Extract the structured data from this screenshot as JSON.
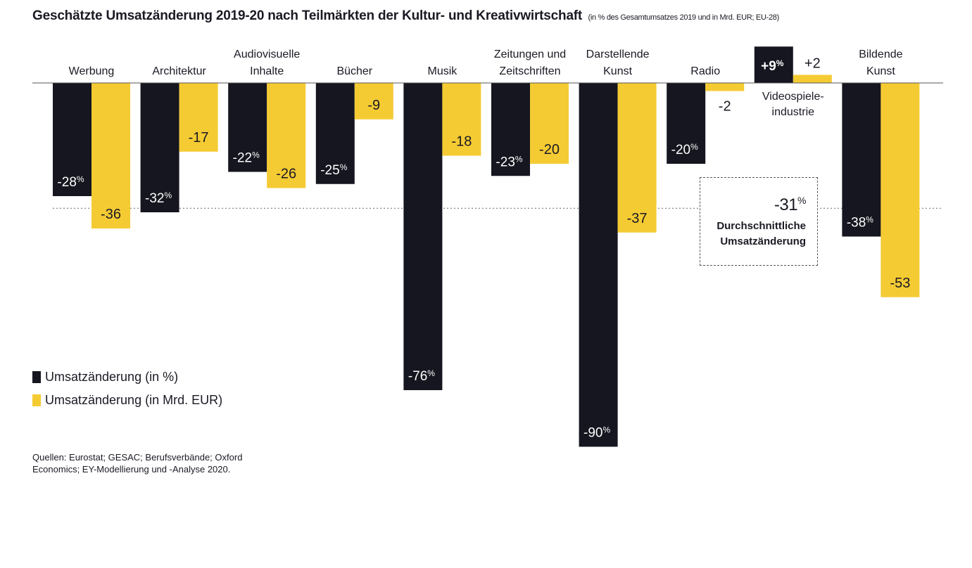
{
  "title": "Geschätzte Umsatzänderung 2019-20 nach Teilmärkten der Kultur- und Kreativwirtschaft",
  "subtitle": "(in % des Gesamtumsatzes 2019 und in Mrd. EUR; EU-28)",
  "colors": {
    "percent": "#15161f",
    "eur": "#f5cb33",
    "text": "#1a1a24"
  },
  "legend": {
    "percent": "Umsatzänderung (in %)",
    "eur": "Umsatzänderung (in Mrd. EUR)"
  },
  "average": {
    "value": "-31%",
    "label_line1": "Durchschnittliche",
    "label_line2": "Umsatzänderung"
  },
  "source": "Quellen: Eurostat; GESAC; Berufsverbände; Oxford Economics; EY-Modellierung und -Analyse 2020.",
  "chart_data": {
    "type": "bar",
    "categories": [
      "Werbung",
      "Architektur",
      "Audiovisuelle Inhalte",
      "Bücher",
      "Musik",
      "Zeitungen und Zeitschriften",
      "Darstellende Kunst",
      "Radio",
      "Videospiele-industrie",
      "Bildende Kunst"
    ],
    "category_lines": [
      [
        "Werbung"
      ],
      [
        "Architektur"
      ],
      [
        "Audiovisuelle",
        "Inhalte"
      ],
      [
        "Bücher"
      ],
      [
        "Musik"
      ],
      [
        "Zeitungen und",
        "Zeitschriften"
      ],
      [
        "Darstellende",
        "Kunst"
      ],
      [
        "Radio"
      ],
      [
        "Videospiele-",
        "industrie"
      ],
      [
        "Bildende",
        "Kunst"
      ]
    ],
    "series": [
      {
        "name": "Umsatzänderung (in %)",
        "values": [
          -28,
          -32,
          -22,
          -25,
          -76,
          -23,
          -90,
          -20,
          9,
          -38
        ],
        "labels": [
          "-28%",
          "-32%",
          "-22%",
          "-25%",
          "-76%",
          "-23%",
          "-90%",
          "-20%",
          "+9%",
          "-38%"
        ]
      },
      {
        "name": "Umsatzänderung (in Mrd. EUR)",
        "values": [
          -36,
          -17,
          -26,
          -9,
          -18,
          -20,
          -37,
          -2,
          2,
          -53
        ],
        "labels": [
          "-36",
          "-17",
          "-26",
          "-9",
          "-18",
          "-20",
          "-37",
          "-2",
          "+2",
          "-53"
        ]
      }
    ],
    "average_percent": -31,
    "legend_position": "bottom-left",
    "grid": false
  }
}
